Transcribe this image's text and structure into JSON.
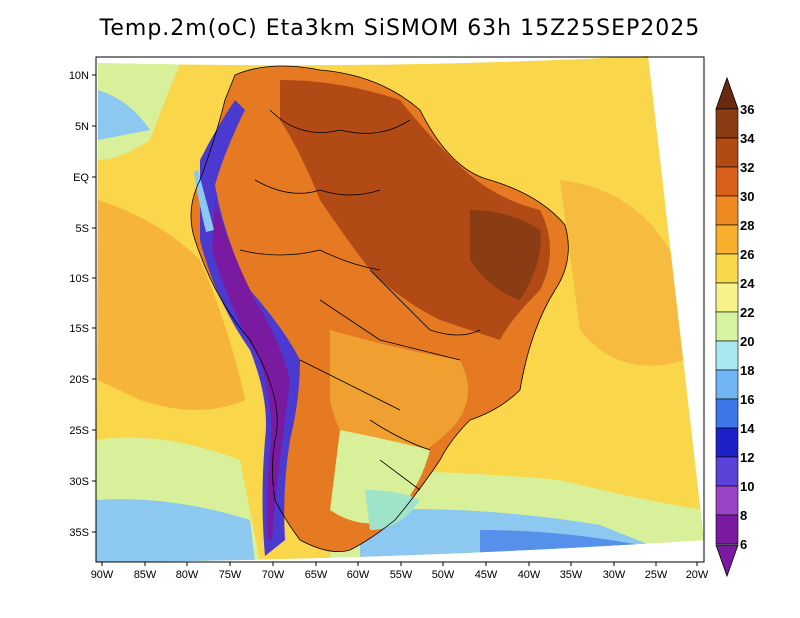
{
  "title": "Temp.2m(oC) Eta3km SiSMOM 63h 15Z25SEP2025",
  "lat_labels": [
    "10N",
    "5N",
    "EQ",
    "5S",
    "10S",
    "15S",
    "20S",
    "25S",
    "30S",
    "35S"
  ],
  "lon_labels": [
    "90W",
    "85W",
    "80W",
    "75W",
    "70W",
    "65W",
    "60W",
    "55W",
    "50W",
    "45W",
    "40W",
    "35W",
    "30W",
    "25W",
    "20W"
  ],
  "colorbar": {
    "labels": [
      "36",
      "34",
      "32",
      "30",
      "28",
      "26",
      "24",
      "22",
      "20",
      "18",
      "16",
      "14",
      "12",
      "10",
      "8",
      "6"
    ],
    "colors": [
      "#6b2a10",
      "#8a3c14",
      "#b24a16",
      "#d95f1a",
      "#ef8a22",
      "#f6b02e",
      "#f9d84a",
      "#f7f28a",
      "#d6f3a0",
      "#a9e8f0",
      "#6fb6f2",
      "#3d78e8",
      "#1c22c8",
      "#5a42d8",
      "#9a44c8",
      "#7a1aa0"
    ]
  },
  "region_colors": {
    "ocean_warm": "#f6b03a",
    "ocean_mid": "#f9d64a",
    "ocean_cool": "#d9f09a",
    "ocean_cold": "#8cc8f0",
    "land_hot": "#b24a16",
    "land_warm": "#e57a22",
    "land_mid": "#f0a030",
    "andes": "#4a3ad0",
    "andes_peak": "#7a1aa0",
    "south_cool": "#9fe4c8"
  }
}
